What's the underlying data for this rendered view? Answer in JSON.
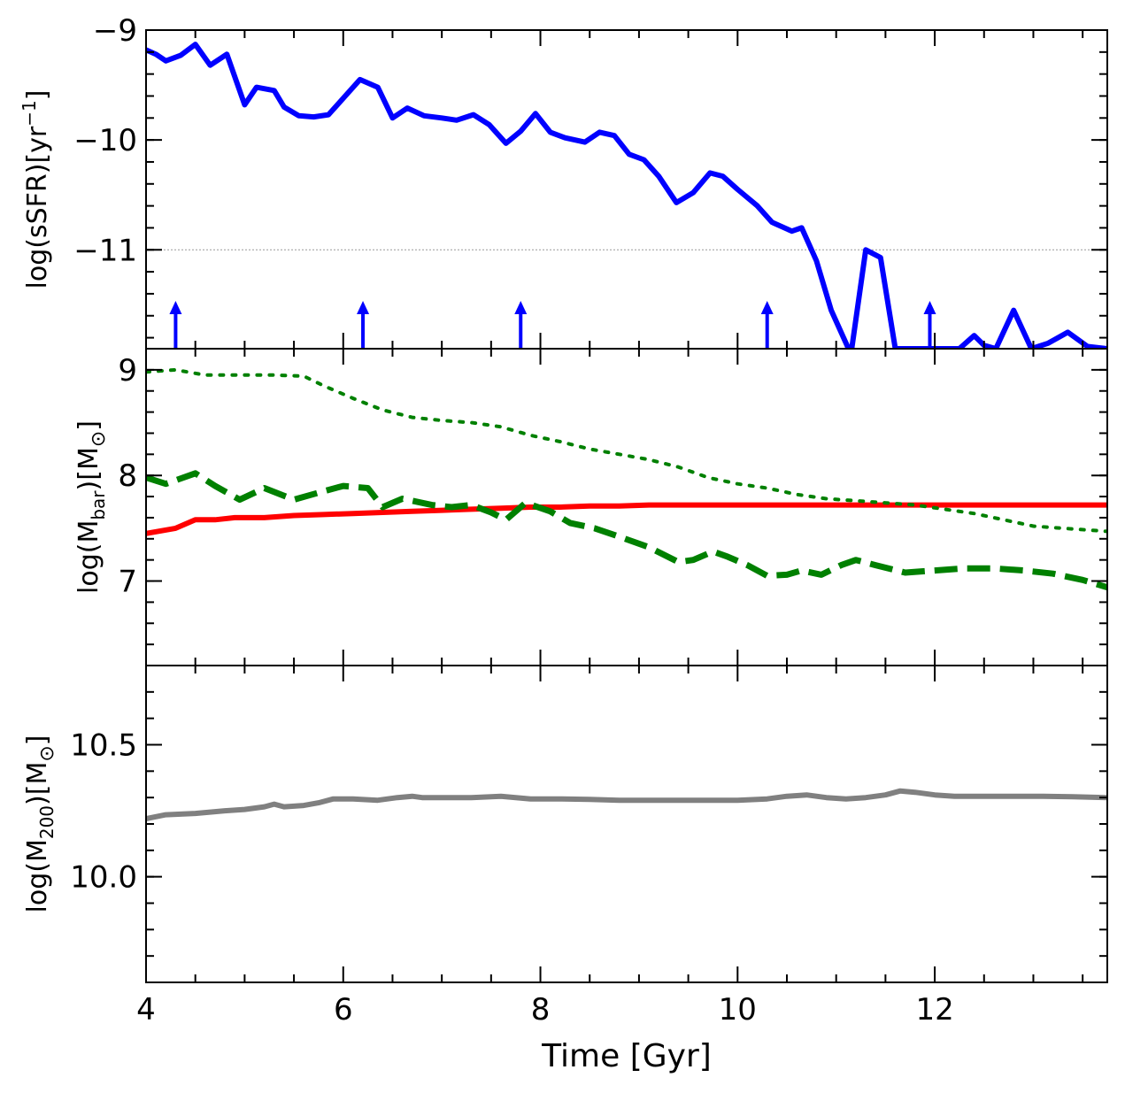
{
  "chart_data": [
    {
      "type": "line",
      "panel": "top",
      "ylabel_main": "log(sSFR)[yr",
      "ylabel_sup": "−1",
      "ylabel_end": "]",
      "xlim": [
        4,
        13.75
      ],
      "ylim": [
        -11.9,
        -9
      ],
      "yticks": [
        -11,
        -10,
        -9
      ],
      "ytick_labels": [
        "−11",
        "−10",
        "−9"
      ],
      "hline": -11,
      "series": [
        {
          "name": "sSFR",
          "color": "#0000ff",
          "style": "solid",
          "x": [
            4.0,
            4.1,
            4.2,
            4.35,
            4.5,
            4.65,
            4.82,
            5.0,
            5.12,
            5.3,
            5.4,
            5.55,
            5.7,
            5.85,
            6.0,
            6.17,
            6.35,
            6.5,
            6.65,
            6.82,
            7.0,
            7.15,
            7.32,
            7.48,
            7.65,
            7.8,
            7.95,
            8.1,
            8.25,
            8.45,
            8.6,
            8.75,
            8.9,
            9.05,
            9.2,
            9.38,
            9.55,
            9.72,
            9.85,
            10.0,
            10.2,
            10.35,
            10.55,
            10.65,
            10.8,
            10.95,
            11.15,
            11.3,
            11.45,
            11.6,
            11.75,
            11.9,
            12.1,
            12.25,
            12.4,
            12.5,
            12.62,
            12.8,
            12.98,
            13.15,
            13.35,
            13.55,
            13.75
          ],
          "y": [
            -9.18,
            -9.22,
            -9.28,
            -9.23,
            -9.13,
            -9.32,
            -9.22,
            -9.68,
            -9.52,
            -9.55,
            -9.7,
            -9.78,
            -9.79,
            -9.77,
            -9.62,
            -9.45,
            -9.52,
            -9.8,
            -9.71,
            -9.78,
            -9.8,
            -9.82,
            -9.77,
            -9.86,
            -10.03,
            -9.92,
            -9.76,
            -9.93,
            -9.98,
            -10.02,
            -9.93,
            -9.96,
            -10.13,
            -10.18,
            -10.33,
            -10.57,
            -10.48,
            -10.3,
            -10.33,
            -10.45,
            -10.6,
            -10.75,
            -10.83,
            -10.8,
            -11.1,
            -11.55,
            -11.95,
            -11.0,
            -11.07,
            -11.9,
            -11.9,
            -11.9,
            -11.9,
            -11.9,
            -11.78,
            -11.87,
            -11.9,
            -11.55,
            -11.9,
            -11.85,
            -11.75,
            -11.88,
            -11.9
          ]
        }
      ],
      "arrows_x": [
        4.3,
        6.2,
        7.8,
        10.3,
        11.95
      ]
    },
    {
      "type": "line",
      "panel": "middle",
      "ylabel_main": "log(M",
      "ylabel_sub": "bar",
      "ylabel_end": ")[M",
      "ylabel_sym": "⊙",
      "ylabel_close": "]",
      "xlim": [
        4,
        13.75
      ],
      "ylim": [
        6.2,
        9.2
      ],
      "yticks": [
        7,
        8,
        9
      ],
      "ytick_labels": [
        "7",
        "8",
        "9"
      ],
      "series": [
        {
          "name": "red-solid",
          "color": "#ff0000",
          "style": "solid",
          "x": [
            4.0,
            4.3,
            4.5,
            4.7,
            4.9,
            5.2,
            5.5,
            5.8,
            6.1,
            6.4,
            6.7,
            7.0,
            7.3,
            7.6,
            7.9,
            8.2,
            8.5,
            8.8,
            9.1,
            9.4,
            9.7,
            10.0,
            10.3,
            10.6,
            10.9,
            11.2,
            11.5,
            11.8,
            12.1,
            12.4,
            12.7,
            13.0,
            13.3,
            13.75
          ],
          "y": [
            7.45,
            7.5,
            7.58,
            7.58,
            7.6,
            7.6,
            7.62,
            7.63,
            7.64,
            7.65,
            7.66,
            7.67,
            7.68,
            7.69,
            7.7,
            7.7,
            7.71,
            7.71,
            7.72,
            7.72,
            7.72,
            7.72,
            7.72,
            7.72,
            7.72,
            7.72,
            7.72,
            7.72,
            7.72,
            7.72,
            7.72,
            7.72,
            7.72,
            7.72
          ]
        },
        {
          "name": "green-dashed",
          "color": "#008000",
          "style": "dashed",
          "x": [
            4.0,
            4.2,
            4.5,
            4.7,
            4.95,
            5.2,
            5.5,
            5.8,
            6.0,
            6.25,
            6.4,
            6.6,
            6.9,
            7.1,
            7.3,
            7.5,
            7.65,
            7.85,
            8.1,
            8.3,
            8.55,
            8.8,
            9.1,
            9.4,
            9.55,
            9.75,
            9.9,
            10.1,
            10.3,
            10.5,
            10.65,
            10.85,
            11.05,
            11.2,
            11.4,
            11.7,
            12.0,
            12.3,
            12.6,
            12.9,
            13.2,
            13.5,
            13.75
          ],
          "y": [
            7.98,
            7.92,
            8.02,
            7.9,
            7.77,
            7.88,
            7.77,
            7.85,
            7.9,
            7.88,
            7.7,
            7.78,
            7.72,
            7.7,
            7.72,
            7.65,
            7.58,
            7.74,
            7.66,
            7.55,
            7.5,
            7.42,
            7.32,
            7.18,
            7.2,
            7.28,
            7.23,
            7.15,
            7.05,
            7.06,
            7.1,
            7.06,
            7.15,
            7.2,
            7.15,
            7.08,
            7.1,
            7.12,
            7.12,
            7.1,
            7.07,
            7.01,
            6.94
          ]
        },
        {
          "name": "green-dotted",
          "color": "#008000",
          "style": "dotted",
          "x": [
            4.0,
            4.3,
            4.6,
            5.0,
            5.3,
            5.6,
            5.8,
            6.1,
            6.4,
            6.7,
            7.0,
            7.3,
            7.6,
            7.9,
            8.2,
            8.5,
            8.8,
            9.1,
            9.4,
            9.7,
            10.0,
            10.3,
            10.6,
            10.9,
            11.2,
            11.5,
            11.8,
            12.1,
            12.4,
            12.7,
            13.0,
            13.3,
            13.75
          ],
          "y": [
            8.98,
            9.0,
            8.95,
            8.95,
            8.95,
            8.94,
            8.85,
            8.73,
            8.62,
            8.55,
            8.52,
            8.5,
            8.46,
            8.38,
            8.32,
            8.25,
            8.2,
            8.15,
            8.08,
            7.98,
            7.92,
            7.88,
            7.82,
            7.78,
            7.76,
            7.74,
            7.72,
            7.68,
            7.64,
            7.58,
            7.52,
            7.5,
            7.47
          ]
        }
      ]
    },
    {
      "type": "line",
      "panel": "bottom",
      "ylabel_main": "log(M",
      "ylabel_sub": "200",
      "ylabel_end": ")[M",
      "ylabel_sym": "⊙",
      "ylabel_close": "]",
      "xlabel": "Time [Gyr]",
      "xlim": [
        4,
        13.75
      ],
      "xticks": [
        4,
        6,
        8,
        10,
        12
      ],
      "xtick_labels": [
        "4",
        "6",
        "8",
        "10",
        "12"
      ],
      "ylim": [
        9.6,
        10.8
      ],
      "yticks": [
        10.0,
        10.5
      ],
      "ytick_labels": [
        "10.0",
        "10.5"
      ],
      "series": [
        {
          "name": "M200",
          "color": "#808080",
          "style": "solid",
          "x": [
            4.0,
            4.2,
            4.5,
            4.8,
            5.0,
            5.2,
            5.3,
            5.4,
            5.6,
            5.75,
            5.9,
            6.1,
            6.35,
            6.55,
            6.7,
            6.8,
            7.0,
            7.3,
            7.6,
            7.9,
            8.2,
            8.5,
            8.8,
            9.1,
            9.4,
            9.7,
            10.0,
            10.3,
            10.5,
            10.7,
            10.9,
            11.1,
            11.3,
            11.5,
            11.65,
            11.8,
            12.0,
            12.2,
            12.5,
            12.8,
            13.1,
            13.4,
            13.75
          ],
          "y": [
            10.22,
            10.235,
            10.24,
            10.25,
            10.255,
            10.265,
            10.275,
            10.265,
            10.27,
            10.28,
            10.295,
            10.295,
            10.29,
            10.3,
            10.305,
            10.3,
            10.3,
            10.3,
            10.305,
            10.295,
            10.295,
            10.293,
            10.29,
            10.29,
            10.29,
            10.29,
            10.29,
            10.295,
            10.305,
            10.31,
            10.3,
            10.295,
            10.3,
            10.31,
            10.325,
            10.32,
            10.31,
            10.305,
            10.305,
            10.305,
            10.305,
            10.303,
            10.3
          ]
        }
      ]
    }
  ]
}
